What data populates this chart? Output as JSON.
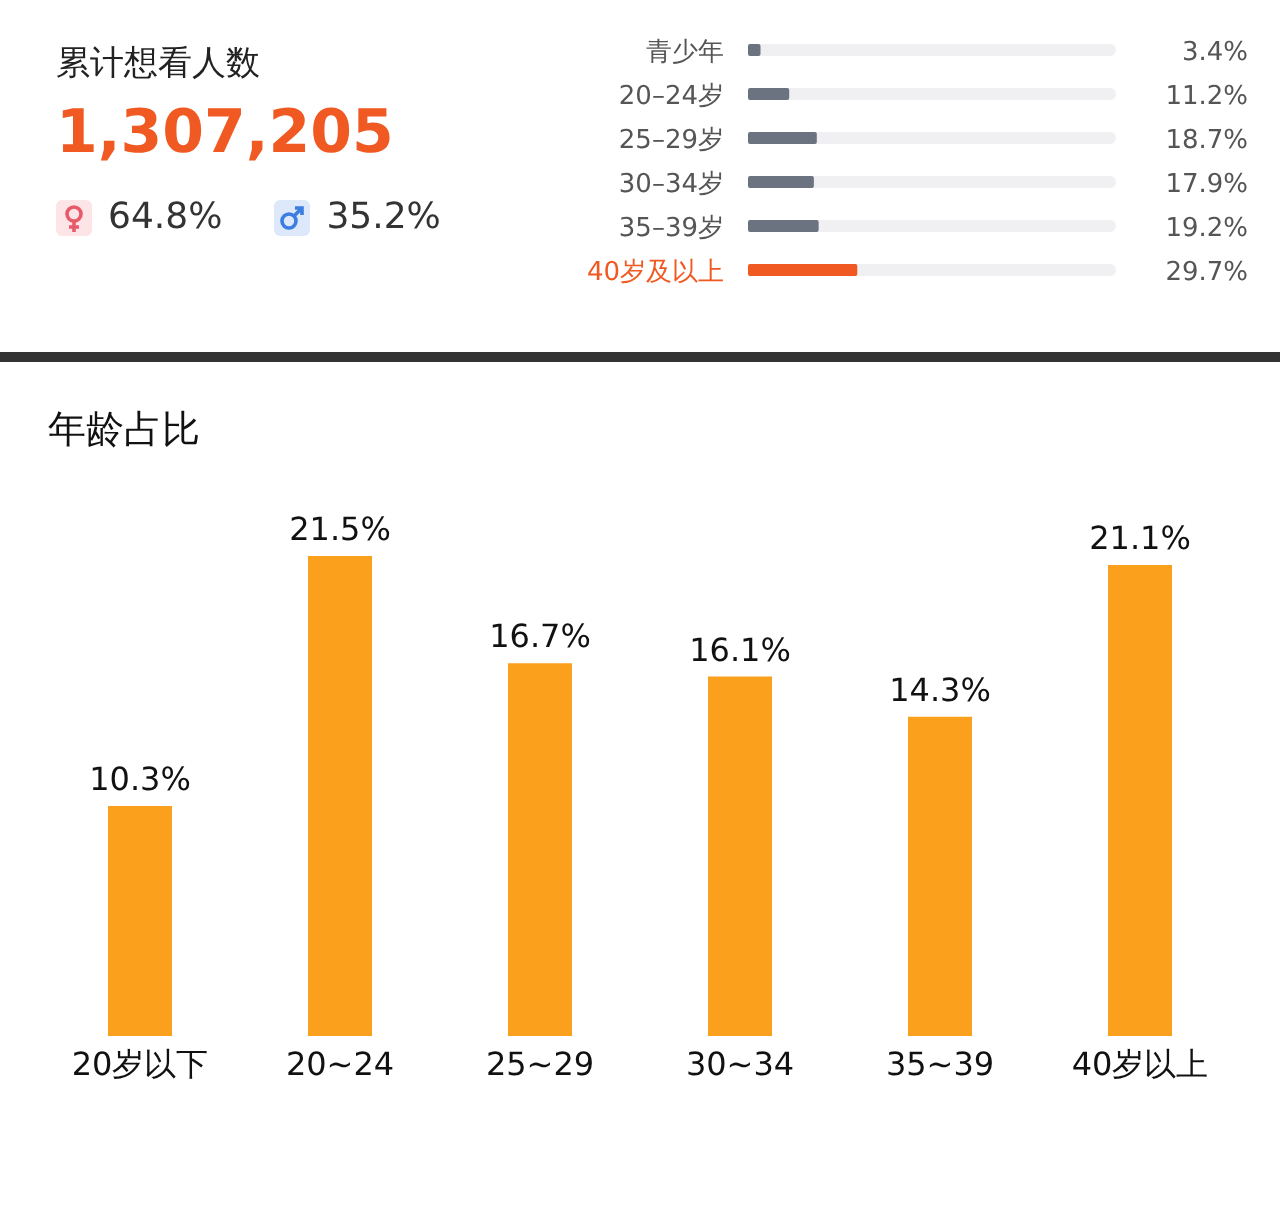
{
  "chart_data": [
    {
      "type": "other",
      "title": "累计想看人数",
      "subtitle": "1,307,205",
      "annotations": [
        "64.8%",
        "35.2%"
      ]
    },
    {
      "type": "bar",
      "orientation": "horizontal",
      "categories": [
        "青少年",
        "20–24岁",
        "25–29岁",
        "30–34岁",
        "35–39岁",
        "40岁及以上"
      ],
      "values": [
        3.4,
        11.2,
        18.7,
        17.9,
        19.2,
        29.7
      ],
      "colors": [
        "#6b7280",
        "#6b7280",
        "#6b7280",
        "#6b7280",
        "#6b7280",
        "#f05a22"
      ],
      "xlim": [
        0,
        100
      ],
      "value_labels": [
        "3.4%",
        "11.2%",
        "18.7%",
        "17.9%",
        "19.2%",
        "29.7%"
      ]
    },
    {
      "type": "bar",
      "title": "年龄占比",
      "categories": [
        "20岁以下",
        "20~24",
        "25~29",
        "30~34",
        "35~39",
        "40岁以上"
      ],
      "values": [
        10.3,
        21.5,
        16.7,
        16.1,
        14.3,
        21.1
      ],
      "color": "#fba01c",
      "value_labels": [
        "10.3%",
        "21.5%",
        "16.7%",
        "16.1%",
        "14.3%",
        "21.1%"
      ]
    }
  ]
}
